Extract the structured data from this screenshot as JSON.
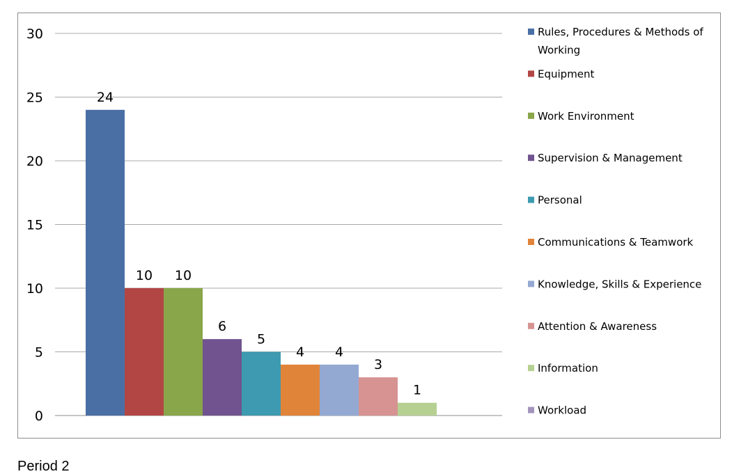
{
  "chart_data": {
    "type": "bar",
    "categories": [
      "Rules, Procedures & Methods of Working",
      "Equipment",
      "Work Environment",
      "Supervision & Management",
      "Personal",
      "Communications & Teamwork",
      "Knowledge, Skills & Experience",
      "Attention & Awareness",
      "Information",
      "Workload"
    ],
    "values": [
      24,
      10,
      10,
      6,
      5,
      4,
      4,
      3,
      1,
      0
    ],
    "value_labels": [
      "24",
      "10",
      "10",
      "6",
      "5",
      "4",
      "4",
      "3",
      "1",
      ""
    ],
    "colors": [
      "#4a6fa5",
      "#b24645",
      "#8aa64a",
      "#70538f",
      "#3d9ab0",
      "#e0843a",
      "#93a9d2",
      "#d69392",
      "#b6d092",
      "#a394bd"
    ],
    "legend": [
      {
        "line1": "Rules, Procedures & Methods of",
        "line2": "Working"
      },
      {
        "line1": "Equipment",
        "line2": ""
      },
      {
        "line1": "Work Environment",
        "line2": ""
      },
      {
        "line1": "Supervision & Management",
        "line2": ""
      },
      {
        "line1": "Personal",
        "line2": ""
      },
      {
        "line1": "Communications & Teamwork",
        "line2": ""
      },
      {
        "line1": "Knowledge, Skills & Experience",
        "line2": ""
      },
      {
        "line1": "Attention & Awareness",
        "line2": ""
      },
      {
        "line1": "Information",
        "line2": ""
      },
      {
        "line1": "Workload",
        "line2": ""
      }
    ],
    "y_ticks": [
      "0",
      "5",
      "10",
      "15",
      "20",
      "25",
      "30"
    ],
    "ylim": [
      0,
      30
    ],
    "grid": true,
    "legend_position": "right",
    "title": "",
    "xlabel": "",
    "ylabel": ""
  },
  "caption": "Period 2"
}
